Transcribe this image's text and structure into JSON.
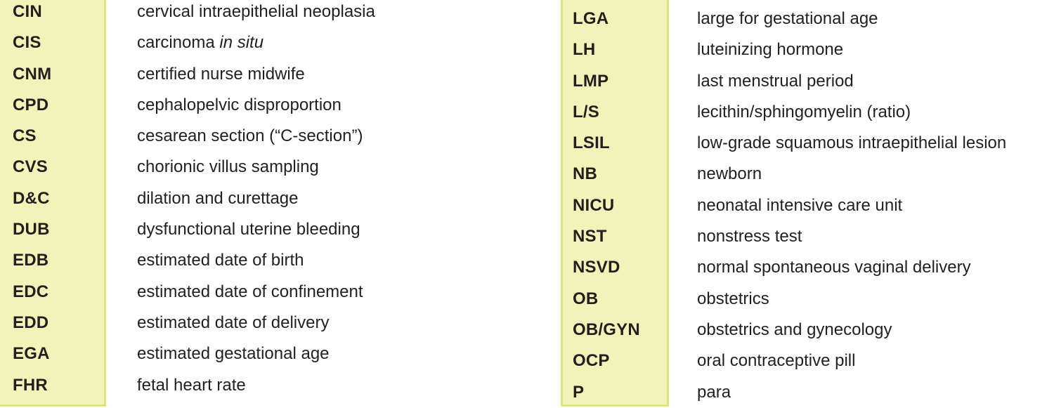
{
  "left": {
    "rows": [
      {
        "abbr": "CIN",
        "term": "cervical intraepithelial neoplasia"
      },
      {
        "abbr": "CIS",
        "term": "carcinoma ",
        "term_italic": "in situ"
      },
      {
        "abbr": "CNM",
        "term": "certified nurse midwife"
      },
      {
        "abbr": "CPD",
        "term": "cephalopelvic disproportion"
      },
      {
        "abbr": "CS",
        "term": "cesarean section (“C-section”)"
      },
      {
        "abbr": "CVS",
        "term": "chorionic villus sampling"
      },
      {
        "abbr": "D&C",
        "term": "dilation and curettage"
      },
      {
        "abbr": "DUB",
        "term": "dysfunctional uterine bleeding"
      },
      {
        "abbr": "EDB",
        "term": "estimated date of birth"
      },
      {
        "abbr": "EDC",
        "term": "estimated date of confinement"
      },
      {
        "abbr": "EDD",
        "term": "estimated date of delivery"
      },
      {
        "abbr": "EGA",
        "term": "estimated gestational age"
      },
      {
        "abbr": "FHR",
        "term": "fetal heart rate"
      }
    ]
  },
  "right": {
    "rows": [
      {
        "abbr": "LGA",
        "term": "large for gestational age"
      },
      {
        "abbr": "LH",
        "term": "luteinizing hormone"
      },
      {
        "abbr": "LMP",
        "term": "last menstrual period"
      },
      {
        "abbr": "L/S",
        "term": "lecithin/sphingomyelin (ratio)"
      },
      {
        "abbr": "LSIL",
        "term": "low-grade squamous intraepithelial lesion"
      },
      {
        "abbr": "NB",
        "term": "newborn"
      },
      {
        "abbr": "NICU",
        "term": "neonatal intensive care unit"
      },
      {
        "abbr": "NST",
        "term": "nonstress test"
      },
      {
        "abbr": "NSVD",
        "term": "normal spontaneous vaginal delivery"
      },
      {
        "abbr": "OB",
        "term": "obstetrics"
      },
      {
        "abbr": "OB/GYN",
        "term": "obstetrics and gynecology"
      },
      {
        "abbr": "OCP",
        "term": "oral contraceptive pill"
      },
      {
        "abbr": "P",
        "term": "para"
      }
    ]
  },
  "colors": {
    "abbr_background": "#f1f3b8",
    "abbr_border": "#dde67a",
    "text": "#231f20"
  }
}
